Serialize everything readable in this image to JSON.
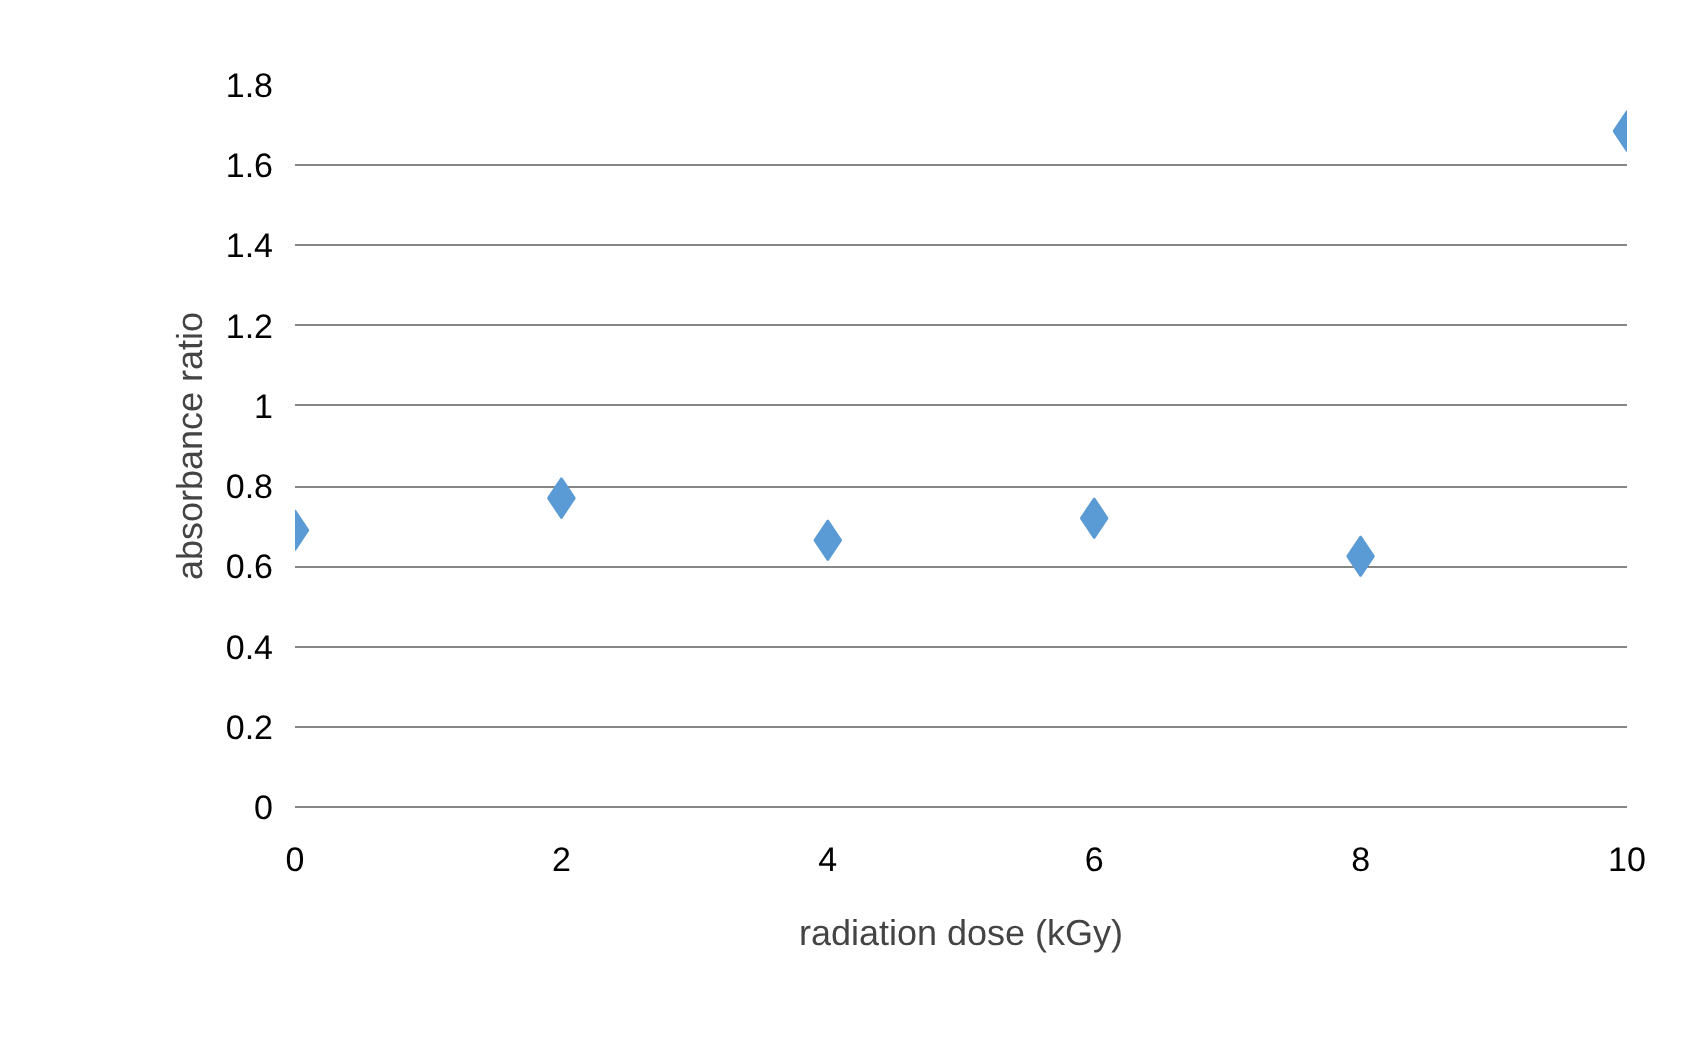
{
  "chart_data": {
    "type": "scatter",
    "xlabel": "radiation dose (kGy)",
    "ylabel": "absorbance ratio",
    "x": [
      0,
      2,
      4,
      6,
      8,
      10
    ],
    "series": [
      {
        "color": "#5b9bd5",
        "values": [
          0.69,
          0.77,
          0.665,
          0.72,
          0.625,
          1.685
        ]
      }
    ],
    "xlim": [
      0,
      10
    ],
    "xticks": [
      0,
      2,
      4,
      6,
      8,
      10
    ],
    "ylim": [
      0,
      1.8
    ],
    "yticks": [
      0,
      0.2,
      0.4,
      0.6,
      0.8,
      1,
      1.2,
      1.4,
      1.6,
      1.8
    ],
    "grid": "y",
    "marker": "diamond"
  }
}
